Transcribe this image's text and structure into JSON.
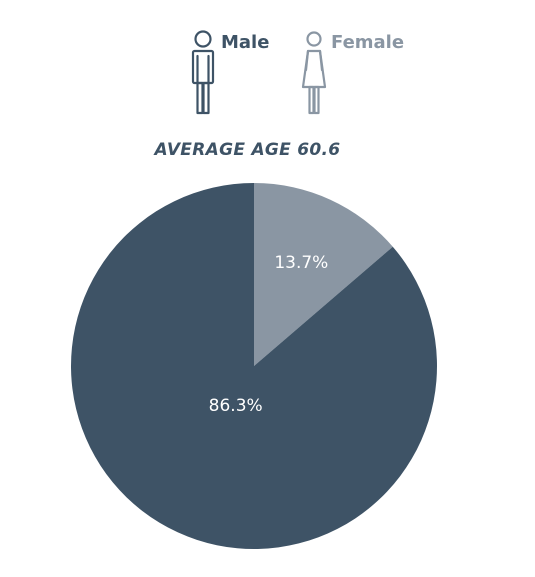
{
  "legend": {
    "male_label": "Male",
    "female_label": "Female",
    "male_icon": "male-figure-icon",
    "female_icon": "female-figure-icon"
  },
  "colors": {
    "male": "#3e5366",
    "female": "#8a96a3"
  },
  "chart_data": {
    "type": "pie",
    "title": "AVERAGE AGE 60.6",
    "slices": [
      {
        "name": "Female",
        "value": 13.7,
        "label": "13.7%",
        "color": "#8a96a3"
      },
      {
        "name": "Male",
        "value": 86.3,
        "label": "86.3%",
        "color": "#3e5366"
      }
    ],
    "start": "12 o'clock, clockwise, Female first"
  }
}
